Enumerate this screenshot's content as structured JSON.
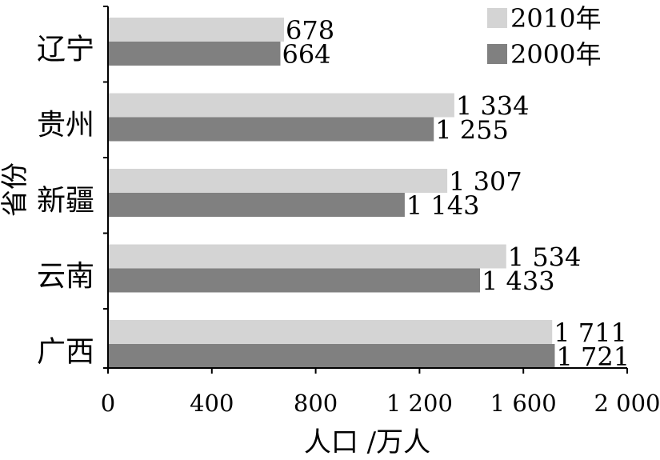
{
  "chart_data": {
    "type": "bar",
    "orientation": "horizontal",
    "categories": [
      "辽宁",
      "贵州",
      "新疆",
      "云南",
      "广西"
    ],
    "series": [
      {
        "name": "2010年",
        "color": "#d4d4d4",
        "values": [
          678,
          1334,
          1307,
          1534,
          1711
        ],
        "labels": [
          "678",
          "1 334",
          "1 307",
          "1 534",
          "1 711"
        ]
      },
      {
        "name": "2000年",
        "color": "#808080",
        "values": [
          664,
          1255,
          1143,
          1433,
          1721
        ],
        "labels": [
          "664",
          "1 255",
          "1 143",
          "1 433",
          "1 721"
        ]
      }
    ],
    "xlabel": "人口 /万人",
    "ylabel": "省份",
    "xlim": [
      0,
      2000
    ],
    "xticks": [
      0,
      400,
      800,
      1200,
      1600,
      2000
    ],
    "xtick_labels": [
      "0",
      "400",
      "800",
      "1 200",
      "1 600",
      "2 000"
    ],
    "legend_position": "top-right",
    "grid": false
  }
}
